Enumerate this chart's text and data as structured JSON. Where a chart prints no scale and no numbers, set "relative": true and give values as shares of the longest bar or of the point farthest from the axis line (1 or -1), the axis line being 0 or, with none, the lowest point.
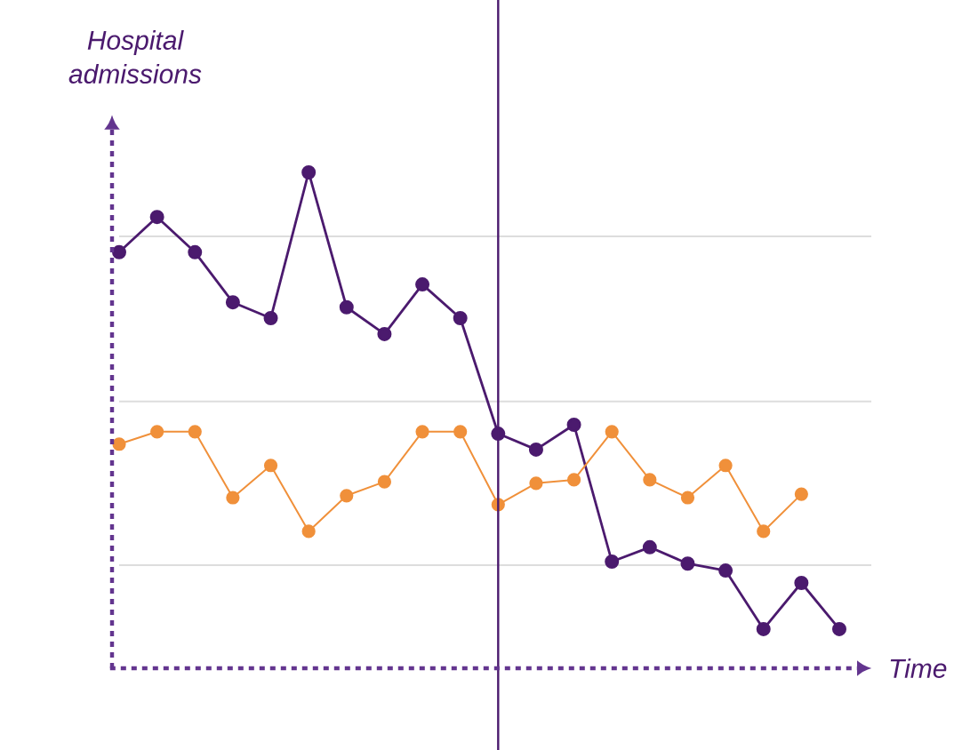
{
  "chart_data": {
    "type": "line",
    "xlabel": "Time",
    "ylabel": "Hospital admissions",
    "relative": true,
    "marker": "circle",
    "categories": [
      null,
      null,
      null,
      null,
      null,
      null,
      null,
      null,
      null,
      null,
      null,
      null,
      null,
      null,
      null,
      null,
      null,
      null,
      null,
      null
    ],
    "series": [
      {
        "color": "#4b1a6e",
        "values": [
          0.839,
          0.91,
          0.839,
          0.738,
          0.706,
          1,
          0.728,
          0.674,
          0.774,
          0.706,
          0.473,
          0.441,
          0.491,
          0.215,
          0.244,
          0.211,
          0.197,
          0.079,
          0.172,
          0.079
        ]
      },
      {
        "color": "#f0903a",
        "values": [
          0.452,
          0.477,
          0.477,
          0.344,
          0.409,
          0.276,
          0.348,
          0.376,
          0.477,
          0.477,
          0.33,
          0.373,
          0.38,
          0.477,
          0.38,
          0.344,
          0.409,
          0.276,
          0.351,
          null
        ]
      }
    ],
    "ref_lines": [
      {
        "axis": "y",
        "value": 0.871,
        "color": "#dddddd"
      },
      {
        "axis": "y",
        "value": 0.538,
        "color": "#dddddd"
      },
      {
        "axis": "y",
        "value": 0.208,
        "color": "#dddddd"
      }
    ]
  }
}
